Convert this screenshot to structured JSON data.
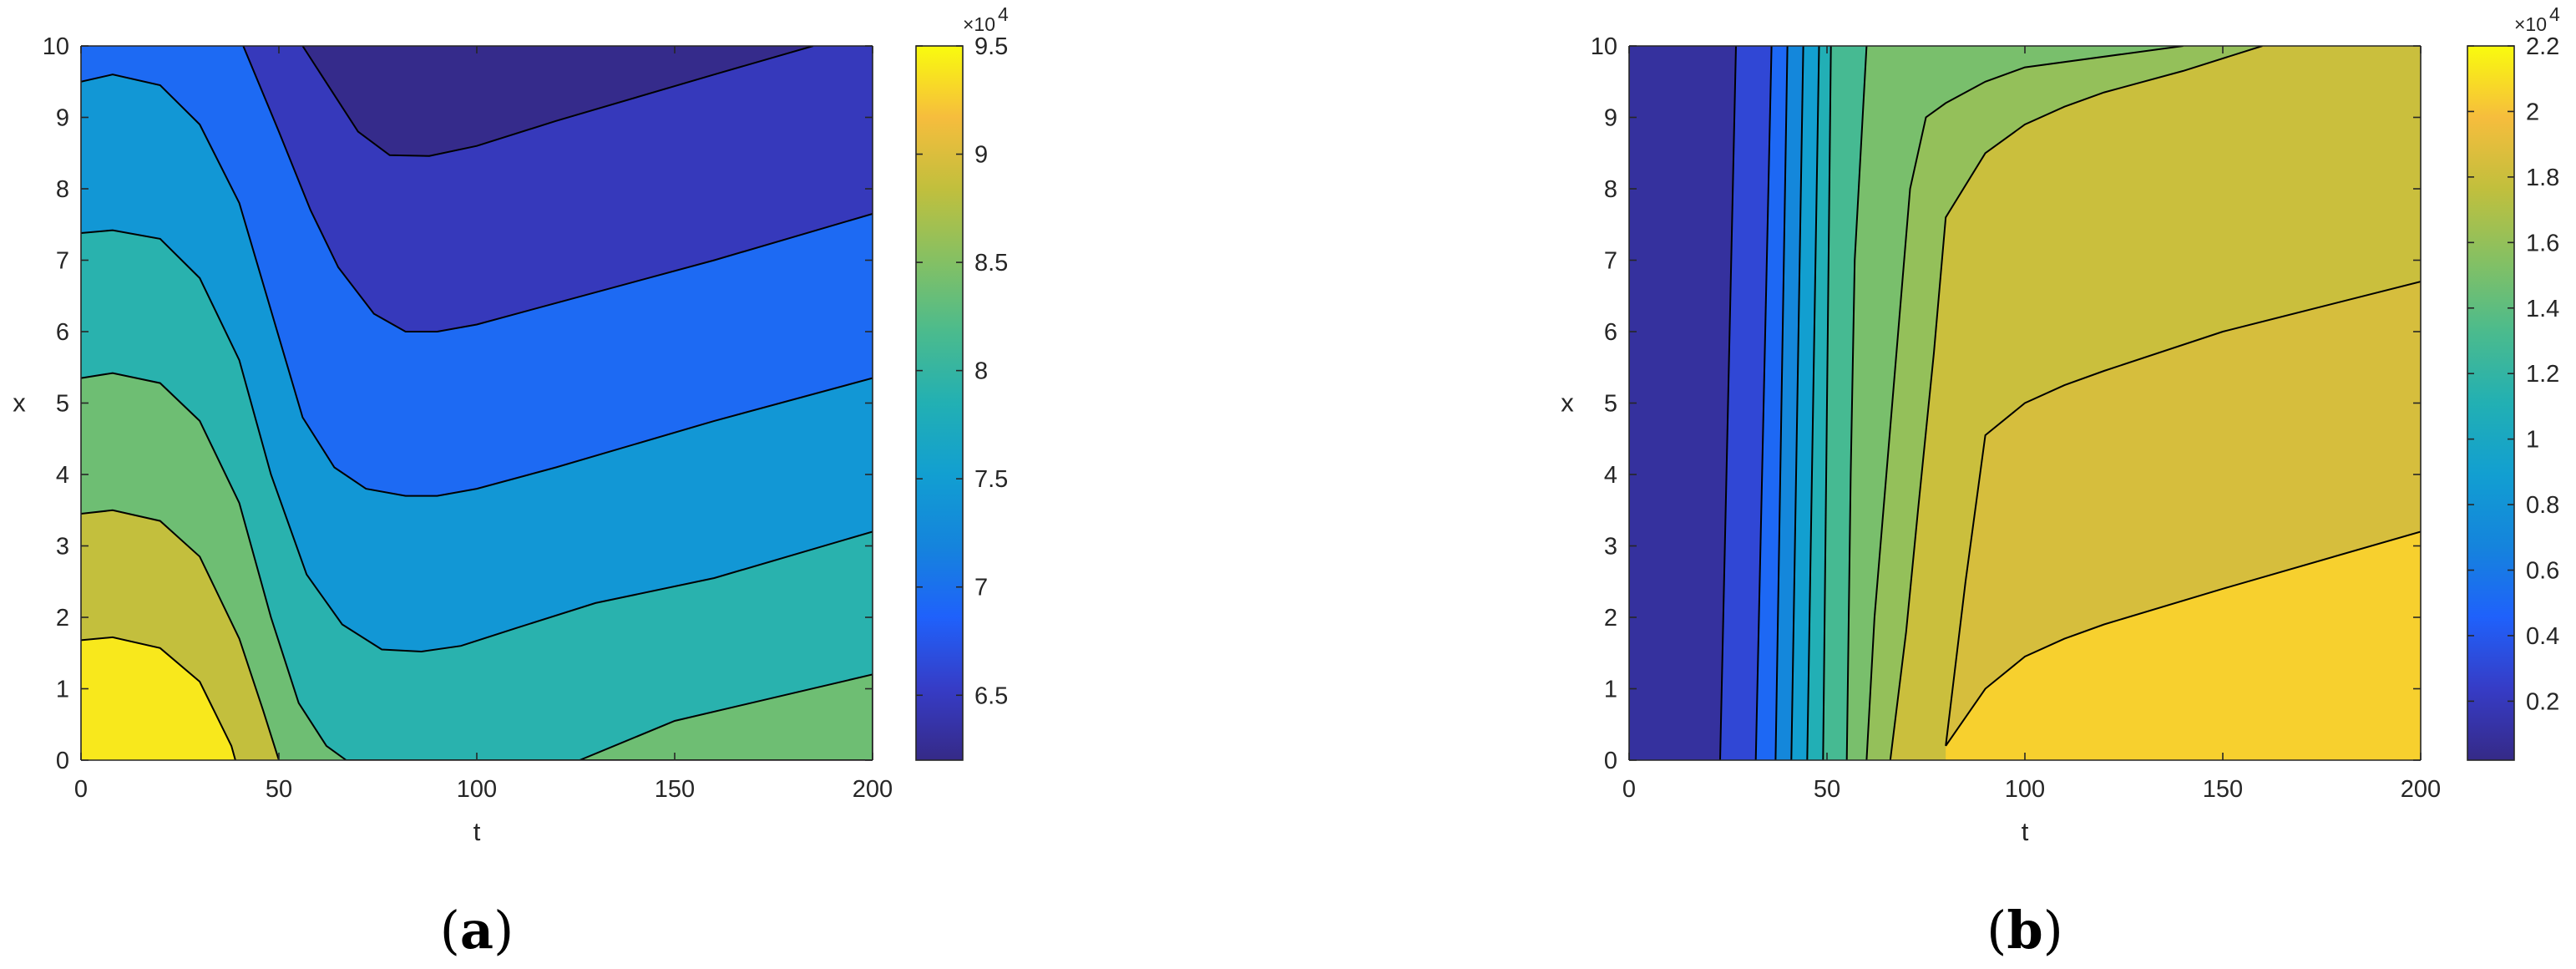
{
  "chart_data": [
    {
      "type": "heatmap",
      "subtype": "filled contour",
      "panel_label": {
        "open": "(",
        "letter": "a",
        "close": ")"
      },
      "xlabel": "t",
      "ylabel": "x",
      "xlim": [
        0,
        200
      ],
      "ylim": [
        0,
        10
      ],
      "xticks": [
        "0",
        "50",
        "100",
        "150",
        "200"
      ],
      "yticks": [
        "0",
        "1",
        "2",
        "3",
        "4",
        "5",
        "6",
        "7",
        "8",
        "9",
        "10"
      ],
      "colorbar": {
        "multiplier": "×10",
        "exponent": "4",
        "range": [
          6.2,
          9.5
        ],
        "ticks": [
          "6.5",
          "7",
          "7.5",
          "8",
          "8.5",
          "9",
          "9.5"
        ],
        "tick_values": [
          6.5,
          7,
          7.5,
          8,
          8.5,
          9,
          9.5
        ]
      },
      "levels": [
        6.71,
        7.18,
        7.66,
        8.14,
        8.61,
        9.09
      ],
      "band_values": [
        6.47,
        6.94,
        7.42,
        7.9,
        8.38,
        8.85,
        9.33
      ],
      "contour_lines": [
        {
          "level": 6.71,
          "points": [
            [
              56,
              10
            ],
            [
              63,
              9.4
            ],
            [
              70,
              8.8
            ],
            [
              78,
              8.47
            ],
            [
              88,
              8.46
            ],
            [
              100,
              8.6
            ],
            [
              120,
              8.95
            ],
            [
              160,
              9.6
            ],
            [
              185,
              10
            ]
          ]
        },
        {
          "level": 7.18,
          "points": [
            [
              41,
              10
            ],
            [
              50,
              8.8
            ],
            [
              58,
              7.7
            ],
            [
              65,
              6.9
            ],
            [
              74,
              6.25
            ],
            [
              82,
              6
            ],
            [
              90,
              6
            ],
            [
              100,
              6.1
            ],
            [
              120,
              6.4
            ],
            [
              160,
              7
            ],
            [
              200,
              7.65
            ]
          ]
        },
        {
          "level": 7.66,
          "points": [
            [
              0,
              9.5
            ],
            [
              8,
              9.6
            ],
            [
              20,
              9.45
            ],
            [
              30,
              8.9
            ],
            [
              40,
              7.8
            ],
            [
              48,
              6.3
            ],
            [
              56,
              4.8
            ],
            [
              64,
              4.1
            ],
            [
              72,
              3.8
            ],
            [
              82,
              3.7
            ],
            [
              90,
              3.7
            ],
            [
              100,
              3.8
            ],
            [
              120,
              4.1
            ],
            [
              160,
              4.75
            ],
            [
              200,
              5.35
            ]
          ]
        },
        {
          "level": 8.14,
          "points": [
            [
              0,
              7.38
            ],
            [
              8,
              7.42
            ],
            [
              20,
              7.3
            ],
            [
              30,
              6.75
            ],
            [
              40,
              5.6
            ],
            [
              48,
              4
            ],
            [
              57,
              2.6
            ],
            [
              66,
              1.9
            ],
            [
              76,
              1.55
            ],
            [
              86,
              1.52
            ],
            [
              96,
              1.6
            ],
            [
              110,
              1.85
            ],
            [
              130,
              2.2
            ],
            [
              160,
              2.55
            ],
            [
              200,
              3.2
            ]
          ]
        },
        {
          "level": 8.61,
          "points": [
            [
              0,
              5.35
            ],
            [
              8,
              5.42
            ],
            [
              20,
              5.28
            ],
            [
              30,
              4.75
            ],
            [
              40,
              3.6
            ],
            [
              48,
              2
            ],
            [
              55,
              0.8
            ],
            [
              62,
              0.2
            ],
            [
              67,
              0
            ],
            [
              200,
              0
            ],
            [
              200,
              1.2
            ],
            [
              150,
              0.55
            ],
            [
              126,
              0
            ]
          ]
        },
        {
          "level": 9.09,
          "points": [
            [
              0,
              3.45
            ],
            [
              8,
              3.5
            ],
            [
              20,
              3.35
            ],
            [
              30,
              2.85
            ],
            [
              40,
              1.7
            ],
            [
              46,
              0.7
            ],
            [
              50,
              0
            ]
          ]
        },
        {
          "level": 9.33,
          "points": [
            [
              0,
              1.68
            ],
            [
              8,
              1.72
            ],
            [
              20,
              1.57
            ],
            [
              30,
              1.1
            ],
            [
              38,
              0.2
            ],
            [
              39,
              0
            ]
          ]
        }
      ]
    },
    {
      "type": "heatmap",
      "subtype": "filled contour",
      "panel_label": {
        "open": "(",
        "letter": "b",
        "close": ")"
      },
      "xlabel": "t",
      "ylabel": "x",
      "xlim": [
        0,
        200
      ],
      "ylim": [
        0,
        10
      ],
      "xticks": [
        "0",
        "50",
        "100",
        "150",
        "200"
      ],
      "yticks": [
        "0",
        "1",
        "2",
        "3",
        "4",
        "5",
        "6",
        "7",
        "8",
        "9",
        "10"
      ],
      "colorbar": {
        "multiplier": "×10",
        "exponent": "4",
        "range": [
          0.02,
          2.2
        ],
        "ticks": [
          "0.2",
          "0.4",
          "0.6",
          "0.8",
          "1",
          "1.2",
          "1.4",
          "1.6",
          "1.8",
          "2",
          "2.2"
        ],
        "tick_values": [
          0.2,
          0.4,
          0.6,
          0.8,
          1,
          1.2,
          1.4,
          1.6,
          1.8,
          2,
          2.2
        ]
      },
      "levels": [
        0.2,
        0.4,
        0.6,
        0.8,
        1,
        1.2,
        1.4,
        1.6,
        1.8,
        2
      ],
      "band_values": [
        0.1,
        0.3,
        0.5,
        0.7,
        0.9,
        1.1,
        1.3,
        1.6,
        1.8,
        2.05
      ],
      "contour_lines": [
        {
          "level": 0.2,
          "points": [
            [
              23,
              0
            ],
            [
              27,
              10
            ]
          ]
        },
        {
          "level": 0.4,
          "points": [
            [
              32,
              0
            ],
            [
              36,
              10
            ]
          ]
        },
        {
          "level": 0.6,
          "points": [
            [
              37,
              0
            ],
            [
              40,
              10
            ]
          ]
        },
        {
          "level": 0.8,
          "points": [
            [
              41,
              0
            ],
            [
              44,
              10
            ]
          ]
        },
        {
          "level": 1.0,
          "points": [
            [
              45,
              0
            ],
            [
              48,
              10
            ]
          ]
        },
        {
          "level": 1.2,
          "points": [
            [
              49,
              0
            ],
            [
              51,
              10
            ]
          ]
        },
        {
          "level": 1.4,
          "points": [
            [
              55,
              0
            ],
            [
              56,
              4
            ],
            [
              57,
              7
            ],
            [
              60,
              10
            ]
          ]
        },
        {
          "level": 1.6,
          "points": [
            [
              60,
              0
            ],
            [
              62,
              2
            ],
            [
              65,
              4
            ],
            [
              68,
              6
            ],
            [
              71,
              8
            ],
            [
              75,
              9
            ],
            [
              80,
              9.2
            ],
            [
              90,
              9.5
            ],
            [
              100,
              9.7
            ],
            [
              140,
              10
            ]
          ]
        },
        {
          "level": 1.8,
          "points": [
            [
              66,
              0
            ],
            [
              70,
              1.8
            ],
            [
              73,
              3.5
            ],
            [
              77,
              5.7
            ],
            [
              80,
              7.6
            ],
            [
              90,
              8.5
            ],
            [
              100,
              8.9
            ],
            [
              110,
              9.15
            ],
            [
              120,
              9.35
            ],
            [
              140,
              9.65
            ],
            [
              160,
              10
            ]
          ]
        },
        {
          "level": 2.0,
          "points": [
            [
              80,
              0.2
            ],
            [
              90,
              1
            ],
            [
              100,
              1.45
            ],
            [
              110,
              1.7
            ],
            [
              120,
              1.9
            ],
            [
              150,
              2.4
            ],
            [
              200,
              3.2
            ]
          ]
        }
      ],
      "boundary_lines": [
        {
          "points": [
            [
              80,
              0.2
            ],
            [
              85,
              2.5
            ],
            [
              90,
              4.55
            ],
            [
              100,
              5
            ],
            [
              110,
              5.25
            ],
            [
              120,
              5.45
            ],
            [
              150,
              6
            ],
            [
              200,
              6.7
            ]
          ]
        }
      ]
    }
  ]
}
